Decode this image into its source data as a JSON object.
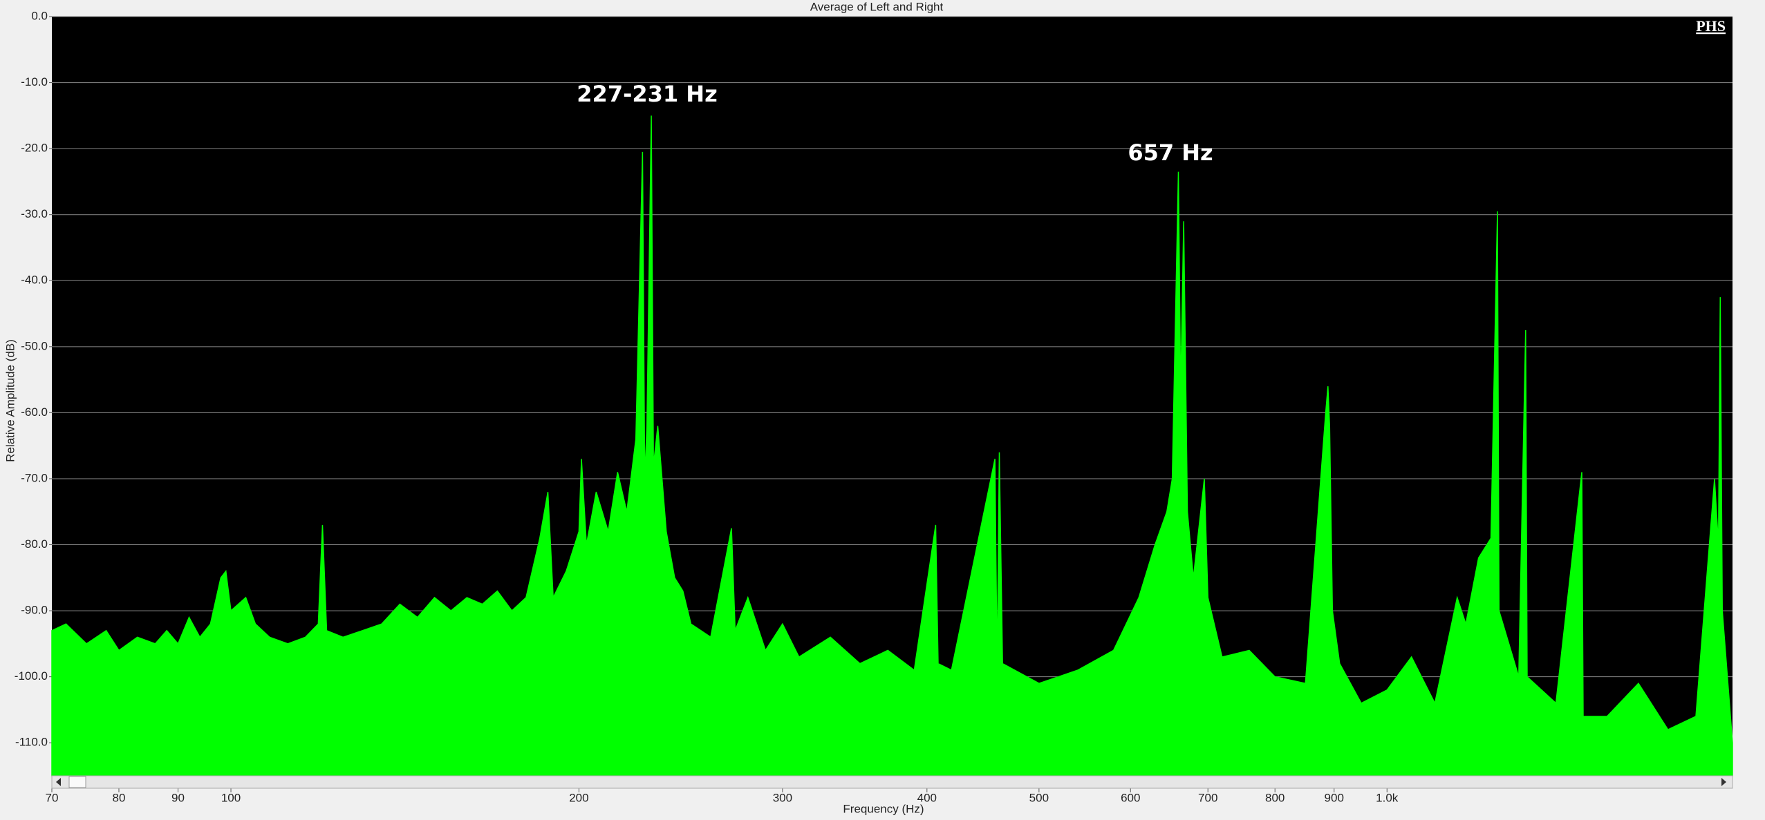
{
  "chart_data": {
    "type": "area",
    "title": "Average of Left and Right",
    "x_label": "Frequency (Hz)",
    "y_label": "Relative Amplitude (dB)",
    "xscale": "log",
    "grid": true,
    "color": "#00ff00",
    "watermark": "PHS",
    "annotations": [
      "227-231 Hz",
      "657 Hz"
    ],
    "xlim": [
      70,
      1990
    ],
    "ylim": [
      -115,
      0
    ],
    "xticks": [
      70,
      80,
      90,
      100,
      200,
      300,
      400,
      500,
      600,
      700,
      800,
      900,
      {
        "value": 1000,
        "label": "1.0k"
      }
    ],
    "yticks": [
      {
        "value": 0,
        "label": "0.0"
      },
      {
        "value": -10,
        "label": "-10.0"
      },
      {
        "value": -20,
        "label": "-20.0"
      },
      {
        "value": -30,
        "label": "-30.0"
      },
      {
        "value": -40,
        "label": "-40.0"
      },
      {
        "value": -50,
        "label": "-50.0"
      },
      {
        "value": -60,
        "label": "-60.0"
      },
      {
        "value": -70,
        "label": "-70.0"
      },
      {
        "value": -80,
        "label": "-80.0"
      },
      {
        "value": -90,
        "label": "-90.0"
      },
      {
        "value": -100,
        "label": "-100.0"
      },
      {
        "value": -110,
        "label": "-110.0"
      }
    ],
    "x": [
      70,
      72,
      75,
      78,
      80,
      83,
      86,
      88,
      90,
      92,
      94,
      96,
      98,
      99,
      100,
      103,
      105,
      108,
      112,
      116,
      119,
      120,
      121,
      125,
      130,
      135,
      140,
      145,
      150,
      155,
      160,
      165,
      170,
      175,
      180,
      185,
      188,
      190,
      195,
      200,
      201,
      203,
      207,
      212,
      216,
      220,
      224,
      227,
      228,
      229,
      231,
      232,
      234,
      238,
      242,
      246,
      250,
      260,
      271,
      273,
      280,
      290,
      300,
      310,
      330,
      350,
      370,
      390,
      407,
      409,
      420,
      458,
      460,
      462,
      465,
      500,
      540,
      580,
      610,
      630,
      645,
      652,
      660,
      663,
      667,
      672,
      680,
      695,
      700,
      720,
      760,
      800,
      850,
      885,
      889,
      892,
      897,
      910,
      950,
      1000,
      1050,
      1100,
      1150,
      1170,
      1200,
      1230,
      1246,
      1250,
      1300,
      1318,
      1322,
      1400,
      1474,
      1478,
      1550,
      1650,
      1750,
      1850,
      1920,
      1935,
      1942,
      1950,
      1990
    ],
    "values": [
      -93,
      -92,
      -95,
      -93,
      -96,
      -94,
      -95,
      -93,
      -95,
      -91,
      -94,
      -92,
      -85,
      -84,
      -90,
      -88,
      -92,
      -94,
      -95,
      -94,
      -92,
      -77,
      -93,
      -94,
      -93,
      -92,
      -89,
      -91,
      -88,
      -90,
      -88,
      -89,
      -87,
      -90,
      -88,
      -79,
      -72,
      -88,
      -84,
      -78,
      -67,
      -80,
      -72,
      -78,
      -69,
      -75,
      -64,
      -20.5,
      -70,
      -62,
      -15,
      -68,
      -62,
      -78,
      -85,
      -87,
      -92,
      -94,
      -77.5,
      -93,
      -88,
      -96,
      -92,
      -97,
      -94,
      -98,
      -96,
      -99,
      -77,
      -98,
      -99,
      -67,
      -99,
      -66,
      -98,
      -101,
      -99,
      -96,
      -88,
      -80,
      -75,
      -70,
      -23.5,
      -57,
      -31,
      -75,
      -85,
      -70,
      -88,
      -97,
      -96,
      -100,
      -101,
      -60,
      -56,
      -62,
      -90,
      -98,
      -104,
      -102,
      -97,
      -104,
      -88,
      -92,
      -82,
      -79,
      -29.5,
      -90,
      -100,
      -47.5,
      -100,
      -104,
      -69,
      -106,
      -106,
      -101,
      -108,
      -106,
      -70,
      -80,
      -42.5,
      -90,
      -110
    ]
  }
}
